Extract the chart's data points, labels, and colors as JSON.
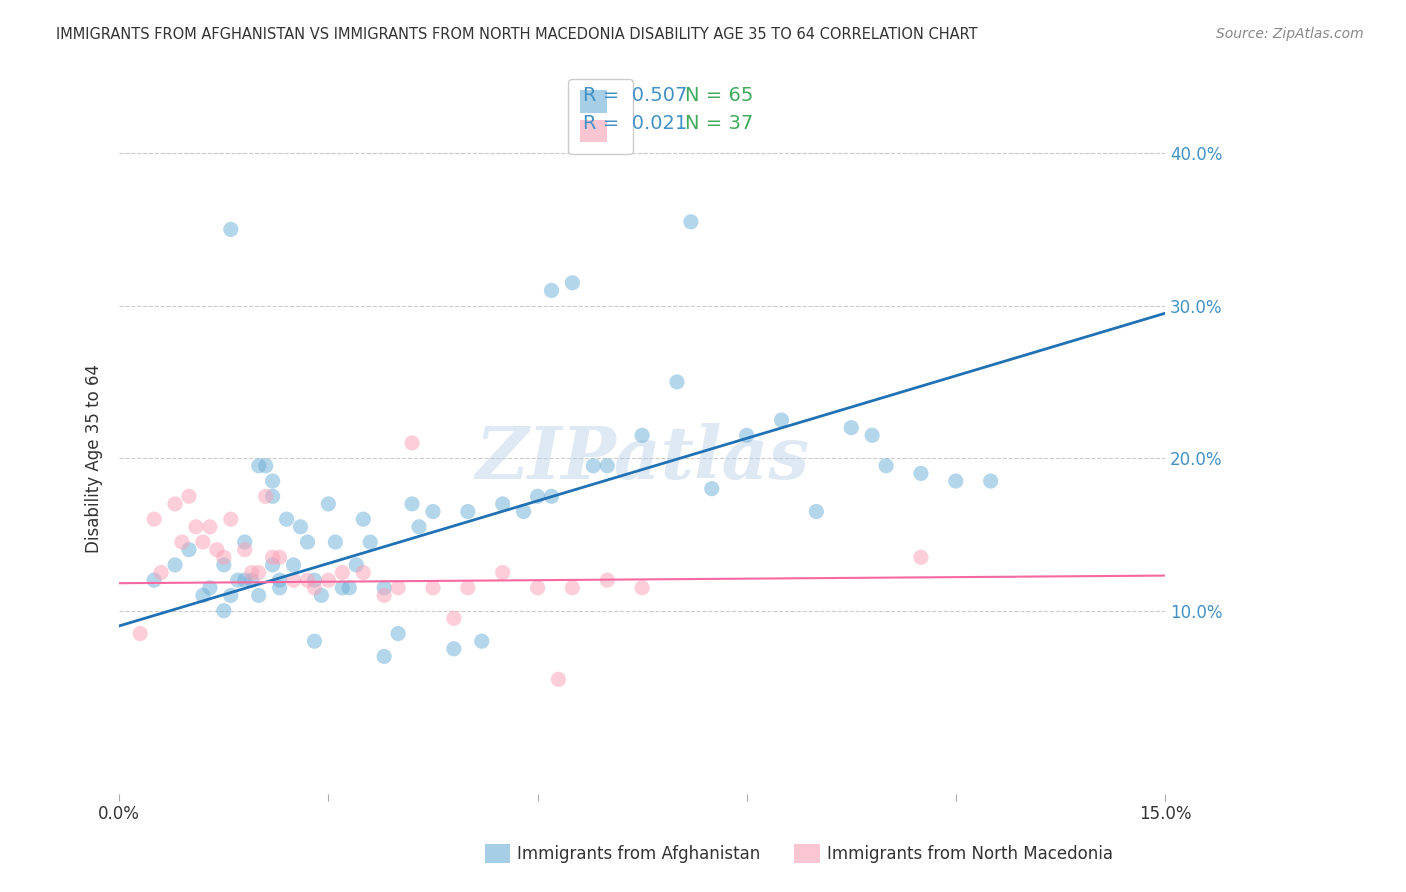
{
  "title": "IMMIGRANTS FROM AFGHANISTAN VS IMMIGRANTS FROM NORTH MACEDONIA DISABILITY AGE 35 TO 64 CORRELATION CHART",
  "source": "Source: ZipAtlas.com",
  "ylabel": "Disability Age 35 to 64",
  "xlim": [
    0.0,
    0.15
  ],
  "ylim": [
    -0.02,
    0.42
  ],
  "yticks": [
    0.0,
    0.1,
    0.2,
    0.3,
    0.4
  ],
  "xticks": [
    0.0,
    0.03,
    0.06,
    0.09,
    0.12,
    0.15
  ],
  "legend_blue_R": "0.507",
  "legend_blue_N": "65",
  "legend_pink_R": "0.021",
  "legend_pink_N": "37",
  "series_blue_label": "Immigrants from Afghanistan",
  "series_pink_label": "Immigrants from North Macedonia",
  "blue_color": "#6baed6",
  "pink_color": "#fa9fb5",
  "blue_line_color": "#2171b5",
  "pink_line_color": "#f768a1",
  "legend_R_color": "#4292c6",
  "legend_N_color": "#41ab5d",
  "watermark": "ZIPatlas",
  "blue_x": [
    0.005,
    0.008,
    0.01,
    0.012,
    0.013,
    0.015,
    0.015,
    0.016,
    0.017,
    0.018,
    0.019,
    0.02,
    0.02,
    0.021,
    0.022,
    0.022,
    0.023,
    0.023,
    0.024,
    0.025,
    0.026,
    0.027,
    0.028,
    0.029,
    0.03,
    0.031,
    0.032,
    0.033,
    0.034,
    0.035,
    0.036,
    0.038,
    0.04,
    0.042,
    0.043,
    0.045,
    0.048,
    0.05,
    0.052,
    0.055,
    0.058,
    0.06,
    0.062,
    0.065,
    0.068,
    0.07,
    0.075,
    0.08,
    0.085,
    0.09,
    0.095,
    0.1,
    0.105,
    0.108,
    0.11,
    0.115,
    0.12,
    0.125,
    0.082,
    0.062,
    0.038,
    0.028,
    0.022,
    0.018,
    0.016
  ],
  "blue_y": [
    0.12,
    0.13,
    0.14,
    0.11,
    0.115,
    0.13,
    0.1,
    0.11,
    0.12,
    0.145,
    0.12,
    0.11,
    0.195,
    0.195,
    0.185,
    0.175,
    0.12,
    0.115,
    0.16,
    0.13,
    0.155,
    0.145,
    0.12,
    0.11,
    0.17,
    0.145,
    0.115,
    0.115,
    0.13,
    0.16,
    0.145,
    0.115,
    0.085,
    0.17,
    0.155,
    0.165,
    0.075,
    0.165,
    0.08,
    0.17,
    0.165,
    0.175,
    0.31,
    0.315,
    0.195,
    0.195,
    0.215,
    0.25,
    0.18,
    0.215,
    0.225,
    0.165,
    0.22,
    0.215,
    0.195,
    0.19,
    0.185,
    0.185,
    0.355,
    0.175,
    0.07,
    0.08,
    0.13,
    0.12,
    0.35
  ],
  "pink_x": [
    0.003,
    0.005,
    0.006,
    0.008,
    0.009,
    0.01,
    0.011,
    0.012,
    0.013,
    0.014,
    0.015,
    0.016,
    0.018,
    0.019,
    0.02,
    0.021,
    0.022,
    0.023,
    0.025,
    0.027,
    0.028,
    0.03,
    0.032,
    0.035,
    0.038,
    0.04,
    0.042,
    0.045,
    0.048,
    0.05,
    0.055,
    0.06,
    0.065,
    0.07,
    0.075,
    0.115,
    0.063
  ],
  "pink_y": [
    0.085,
    0.16,
    0.125,
    0.17,
    0.145,
    0.175,
    0.155,
    0.145,
    0.155,
    0.14,
    0.135,
    0.16,
    0.14,
    0.125,
    0.125,
    0.175,
    0.135,
    0.135,
    0.12,
    0.12,
    0.115,
    0.12,
    0.125,
    0.125,
    0.11,
    0.115,
    0.21,
    0.115,
    0.095,
    0.115,
    0.125,
    0.115,
    0.115,
    0.12,
    0.115,
    0.135,
    0.055
  ],
  "blue_trendline_x": [
    0.0,
    0.15
  ],
  "blue_trendline_y": [
    0.09,
    0.295
  ],
  "pink_trendline_x": [
    0.0,
    0.15
  ],
  "pink_trendline_y": [
    0.118,
    0.123
  ]
}
